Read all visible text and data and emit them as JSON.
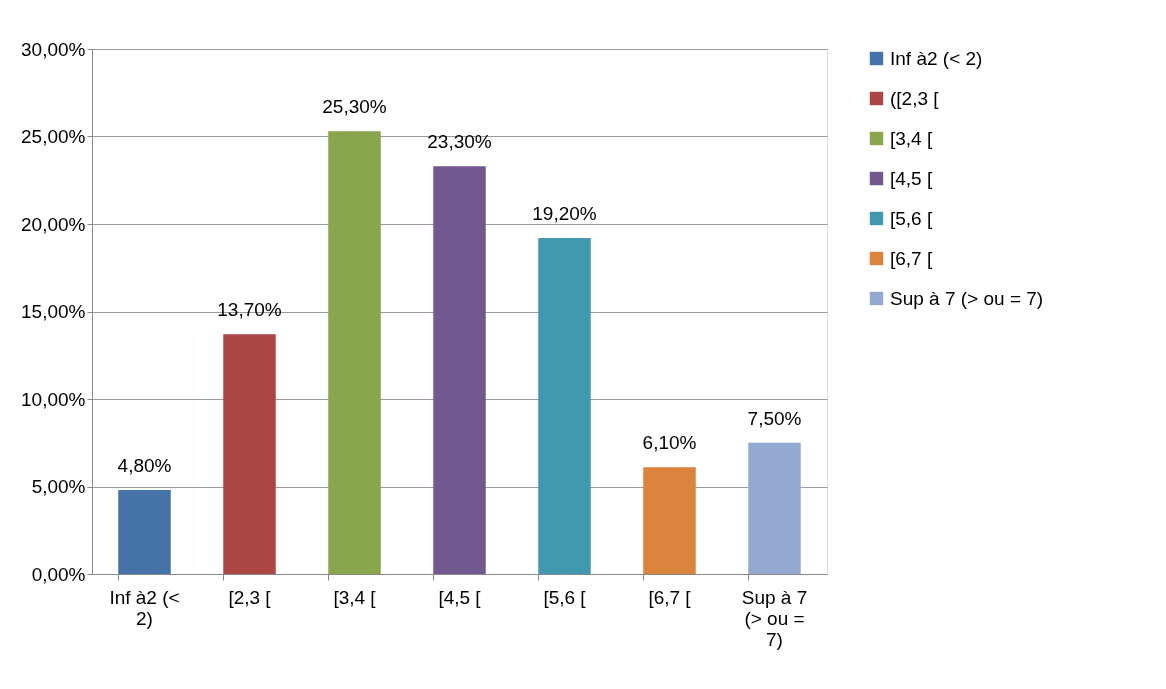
{
  "chart_data": {
    "type": "bar",
    "categories": [
      "Inf à2 (< 2)",
      "[2,3 [",
      "[3,4 [",
      "[4,5 [",
      "[5,6 [",
      "[6,7 [",
      "Sup à 7 (> ou = 7)"
    ],
    "series": [
      {
        "name": "Inf à2 (< 2)",
        "color": "#4572a7",
        "values": [
          4.8,
          null,
          null,
          null,
          null,
          null,
          null
        ],
        "value_labels": [
          "4,80%",
          null,
          null,
          null,
          null,
          null,
          null
        ]
      },
      {
        "name": "([2,3 [",
        "color": "#aa4643",
        "values": [
          null,
          13.7,
          null,
          null,
          null,
          null,
          null
        ],
        "value_labels": [
          null,
          "13,70%",
          null,
          null,
          null,
          null,
          null
        ]
      },
      {
        "name": "[3,4 [",
        "color": "#89a54e",
        "values": [
          null,
          null,
          25.3,
          null,
          null,
          null,
          null
        ],
        "value_labels": [
          null,
          null,
          "25,30%",
          null,
          null,
          null,
          null
        ]
      },
      {
        "name": "[4,5 [",
        "color": "#71588f",
        "values": [
          null,
          null,
          null,
          23.3,
          null,
          null,
          null
        ],
        "value_labels": [
          null,
          null,
          null,
          "23,30%",
          null,
          null,
          null
        ]
      },
      {
        "name": "[5,6 [",
        "color": "#4198af",
        "values": [
          null,
          null,
          null,
          null,
          19.2,
          null,
          null
        ],
        "value_labels": [
          null,
          null,
          null,
          null,
          "19,20%",
          null,
          null
        ]
      },
      {
        "name": "[6,7 [",
        "color": "#db843d",
        "values": [
          null,
          null,
          null,
          null,
          null,
          6.1,
          null
        ],
        "value_labels": [
          null,
          null,
          null,
          null,
          null,
          "6,10%",
          null
        ]
      },
      {
        "name": "Sup à 7 (> ou = 7)",
        "color": "#93a9cf",
        "values": [
          null,
          null,
          null,
          null,
          null,
          null,
          7.5
        ],
        "value_labels": [
          null,
          null,
          null,
          null,
          null,
          null,
          "7,50%"
        ]
      }
    ],
    "ylim": [
      0,
      30
    ],
    "yticks": [
      {
        "value": 0,
        "label": "0,00%"
      },
      {
        "value": 5,
        "label": "5,00%"
      },
      {
        "value": 10,
        "label": "10,00%"
      },
      {
        "value": 15,
        "label": "15,00%"
      },
      {
        "value": 20,
        "label": "20,00%"
      },
      {
        "value": 25,
        "label": "25,00%"
      },
      {
        "value": 30,
        "label": "30,00%"
      }
    ],
    "grid": "y",
    "legend": "right"
  }
}
